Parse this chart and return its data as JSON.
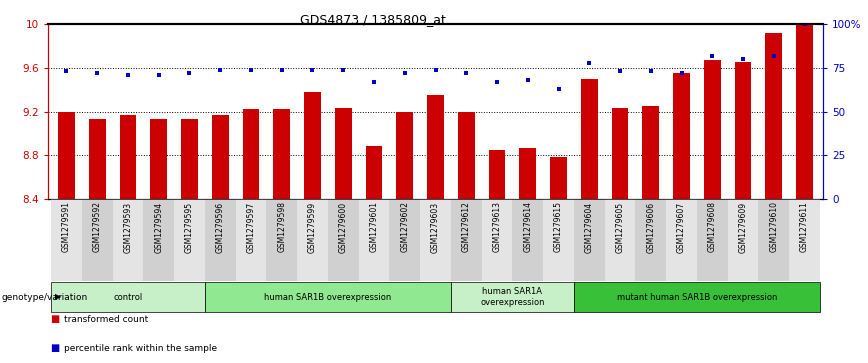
{
  "title": "GDS4873 / 1385809_at",
  "samples": [
    "GSM1279591",
    "GSM1279592",
    "GSM1279593",
    "GSM1279594",
    "GSM1279595",
    "GSM1279596",
    "GSM1279597",
    "GSM1279598",
    "GSM1279599",
    "GSM1279600",
    "GSM1279601",
    "GSM1279602",
    "GSM1279603",
    "GSM1279612",
    "GSM1279613",
    "GSM1279614",
    "GSM1279615",
    "GSM1279604",
    "GSM1279605",
    "GSM1279606",
    "GSM1279607",
    "GSM1279608",
    "GSM1279609",
    "GSM1279610",
    "GSM1279611"
  ],
  "bar_values": [
    9.2,
    9.13,
    9.17,
    9.13,
    9.13,
    9.17,
    9.22,
    9.22,
    9.38,
    9.23,
    8.88,
    9.2,
    9.35,
    9.2,
    8.85,
    8.87,
    8.78,
    9.5,
    9.23,
    9.25,
    9.55,
    9.67,
    9.65,
    9.92,
    10.0
  ],
  "percentile_values": [
    73,
    72,
    71,
    71,
    72,
    74,
    74,
    74,
    74,
    74,
    67,
    72,
    74,
    72,
    67,
    68,
    63,
    78,
    73,
    73,
    72,
    82,
    80,
    82,
    100
  ],
  "groups": [
    {
      "label": "control",
      "start": 0,
      "end": 5,
      "color": "#c8f0c8"
    },
    {
      "label": "human SAR1B overexpression",
      "start": 5,
      "end": 13,
      "color": "#90e890"
    },
    {
      "label": "human SAR1A\noverexpression",
      "start": 13,
      "end": 17,
      "color": "#c8f0c8"
    },
    {
      "label": "mutant human SAR1B overexpression",
      "start": 17,
      "end": 25,
      "color": "#38c038"
    }
  ],
  "ylim": [
    8.4,
    10.0
  ],
  "yticks": [
    8.4,
    8.8,
    9.2,
    9.6,
    10.0
  ],
  "ytick_labels": [
    "8.4",
    "8.8",
    "9.2",
    "9.6",
    "10"
  ],
  "right_yticks": [
    0,
    25,
    50,
    75,
    100
  ],
  "right_ytick_labels": [
    "0",
    "25",
    "50",
    "75",
    "100%"
  ],
  "bar_color": "#cc0000",
  "dot_color": "#0000cc",
  "legend_bar": "transformed count",
  "legend_dot": "percentile rank within the sample",
  "genotype_label": "genotype/variation"
}
